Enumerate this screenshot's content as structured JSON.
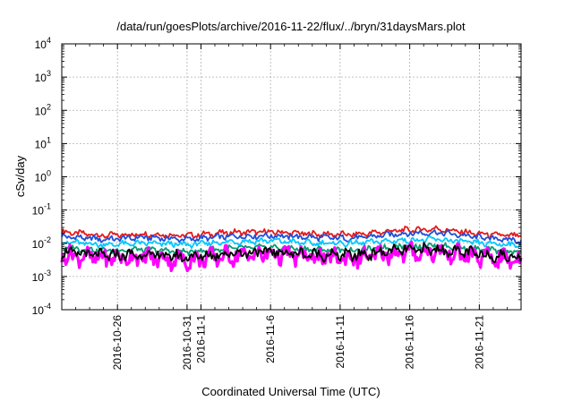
{
  "chart_data": {
    "type": "line",
    "title": "/data/run/goesPlots/archive/2016-11-22/flux/../bryn/31daysMars.plot",
    "xlabel": "Coordinated Universal Time (UTC)",
    "ylabel": "cSv/day",
    "yscale": "log",
    "ylim": [
      0.0001,
      10000
    ],
    "xlim": [
      "2016-10-22",
      "2016-11-24"
    ],
    "grid": true,
    "legend": "none",
    "y_ticks": [
      {
        "base": "10",
        "exp": "-4"
      },
      {
        "base": "10",
        "exp": "-3"
      },
      {
        "base": "10",
        "exp": "-2"
      },
      {
        "base": "10",
        "exp": "-1"
      },
      {
        "base": "10",
        "exp": "0"
      },
      {
        "base": "10",
        "exp": "1"
      },
      {
        "base": "10",
        "exp": "2"
      },
      {
        "base": "10",
        "exp": "3"
      },
      {
        "base": "10",
        "exp": "4"
      }
    ],
    "x_ticks": [
      "2016-10-26",
      "2016-10-31",
      "2016-11-1",
      "2016-11-6",
      "2016-11-11",
      "2016-11-16",
      "2016-11-21"
    ],
    "x_tick_dates": [
      "2016-10-26",
      "2016-10-31",
      "2016-11-01",
      "2016-11-06",
      "2016-11-11",
      "2016-11-16",
      "2016-11-21"
    ],
    "minor_x_dates": [
      "2016-10-23",
      "2016-10-24",
      "2016-10-25",
      "2016-10-27",
      "2016-10-28",
      "2016-10-29",
      "2016-10-30",
      "2016-11-02",
      "2016-11-03",
      "2016-11-04",
      "2016-11-05",
      "2016-11-07",
      "2016-11-08",
      "2016-11-09",
      "2016-11-10",
      "2016-11-12",
      "2016-11-13",
      "2016-11-14",
      "2016-11-15",
      "2016-11-17",
      "2016-11-18",
      "2016-11-19",
      "2016-11-20",
      "2016-11-22",
      "2016-11-23"
    ],
    "series": [
      {
        "color": "#e41a1c",
        "x": [
          "2016-10-22",
          "2016-10-25",
          "2016-10-28",
          "2016-10-31",
          "2016-11-03",
          "2016-11-06",
          "2016-11-09",
          "2016-11-12",
          "2016-11-15",
          "2016-11-18",
          "2016-11-21",
          "2016-11-24"
        ],
        "y": [
          0.022,
          0.017,
          0.019,
          0.017,
          0.021,
          0.022,
          0.019,
          0.018,
          0.024,
          0.027,
          0.019,
          0.016
        ]
      },
      {
        "color": "#1f4fd8",
        "x": [
          "2016-10-22",
          "2016-10-25",
          "2016-10-28",
          "2016-10-31",
          "2016-11-03",
          "2016-11-06",
          "2016-11-09",
          "2016-11-12",
          "2016-11-15",
          "2016-11-18",
          "2016-11-21",
          "2016-11-24"
        ],
        "y": [
          0.016,
          0.013,
          0.015,
          0.013,
          0.016,
          0.017,
          0.015,
          0.014,
          0.019,
          0.021,
          0.015,
          0.012
        ]
      },
      {
        "color": "#00c8ff",
        "x": [
          "2016-10-22",
          "2016-10-25",
          "2016-10-28",
          "2016-10-31",
          "2016-11-03",
          "2016-11-06",
          "2016-11-09",
          "2016-11-12",
          "2016-11-15",
          "2016-11-18",
          "2016-11-21",
          "2016-11-24"
        ],
        "y": [
          0.011,
          0.009,
          0.01,
          0.009,
          0.011,
          0.012,
          0.01,
          0.01,
          0.012,
          0.013,
          0.01,
          0.009
        ]
      },
      {
        "color": "#009e73",
        "x": [
          "2016-10-22",
          "2016-10-25",
          "2016-10-28",
          "2016-10-31",
          "2016-11-03",
          "2016-11-06",
          "2016-11-09",
          "2016-11-12",
          "2016-11-15",
          "2016-11-18",
          "2016-11-21",
          "2016-11-24"
        ],
        "y": [
          0.0075,
          0.006,
          0.0065,
          0.0055,
          0.007,
          0.0075,
          0.0065,
          0.006,
          0.008,
          0.0085,
          0.0065,
          0.0055
        ]
      },
      {
        "color": "#ff00ff",
        "x": [
          "2016-10-22",
          "2016-10-25",
          "2016-10-28",
          "2016-10-31",
          "2016-11-03",
          "2016-11-06",
          "2016-11-09",
          "2016-11-12",
          "2016-11-15",
          "2016-11-18",
          "2016-11-21",
          "2016-11-24"
        ],
        "y": [
          0.0045,
          0.0035,
          0.0038,
          0.003,
          0.0042,
          0.0048,
          0.0038,
          0.0035,
          0.005,
          0.0055,
          0.0038,
          0.003
        ]
      },
      {
        "color": "#000000",
        "x": [
          "2016-10-22",
          "2016-10-25",
          "2016-10-28",
          "2016-10-31",
          "2016-11-03",
          "2016-11-06",
          "2016-11-09",
          "2016-11-12",
          "2016-11-15",
          "2016-11-18",
          "2016-11-21",
          "2016-11-24"
        ],
        "y": [
          0.0055,
          0.0042,
          0.0046,
          0.0038,
          0.005,
          0.0056,
          0.0046,
          0.0043,
          0.006,
          0.0065,
          0.0046,
          0.0038
        ]
      }
    ]
  }
}
